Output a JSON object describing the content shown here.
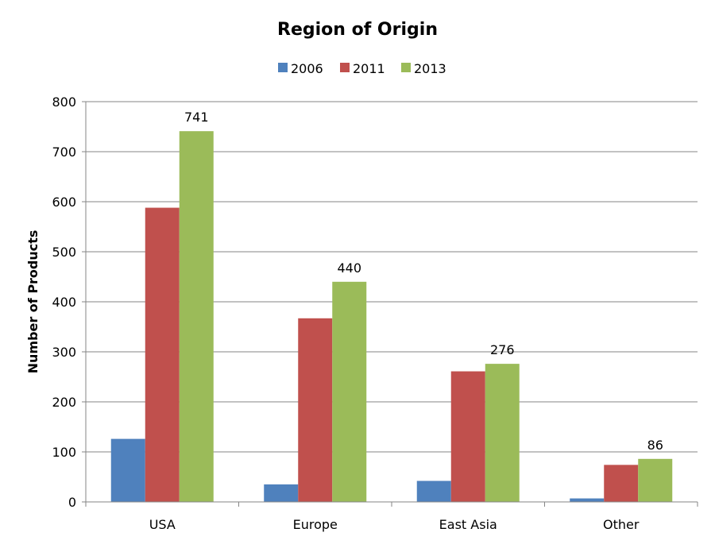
{
  "chart_data": {
    "type": "bar",
    "title": "Region of Origin",
    "ylabel": "Number of Products",
    "xlabel": "",
    "categories": [
      "USA",
      "Europe",
      "East Asia",
      "Other"
    ],
    "series": [
      {
        "name": "2006",
        "color": "#4F81BD",
        "values": [
          126,
          35,
          42,
          7
        ]
      },
      {
        "name": "2011",
        "color": "#C0504D",
        "values": [
          588,
          367,
          261,
          74
        ]
      },
      {
        "name": "2013",
        "color": "#9BBB59",
        "values": [
          741,
          440,
          276,
          86
        ],
        "labels": [
          "741",
          "440",
          "276",
          "86"
        ]
      }
    ],
    "ylim": [
      0,
      800
    ],
    "yticks": [
      "0",
      "100",
      "200",
      "300",
      "400",
      "500",
      "600",
      "700",
      "800"
    ],
    "grid": true,
    "legend_position": "top"
  }
}
